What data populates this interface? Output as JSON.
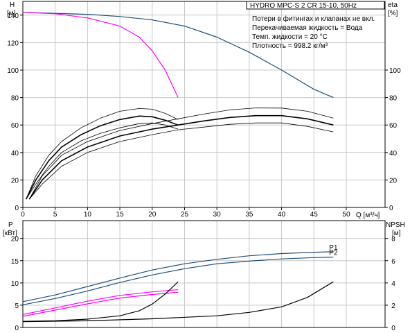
{
  "chart_data": [
    {
      "type": "line",
      "title": "HYDRO MPC-S 2 CR 15-10, 50Hz",
      "notes": [
        "Потери в фитингах и клапанах не вкл.",
        "Перекачиваемая жидкость = Вода",
        "Темп. жидкости = 20 °C",
        "Плотность = 998.2 кг/м³"
      ],
      "xlabel": "Q [м³/ч]",
      "ylabel_left": [
        "H",
        "[м]"
      ],
      "ylabel_right": [
        "eta",
        "[%]"
      ],
      "xlim": [
        0,
        56
      ],
      "ylim_left": [
        0,
        150
      ],
      "ylim_right": [
        0,
        150
      ],
      "x_ticks": [
        0,
        5,
        10,
        15,
        20,
        25,
        30,
        35,
        40,
        45,
        50
      ],
      "y_ticks_left": [
        0,
        20,
        40,
        60,
        80,
        100,
        120,
        140
      ],
      "y_ticks_right": [
        0,
        20,
        40,
        60,
        80,
        100
      ],
      "grid": true,
      "series": [
        {
          "color": "#1f4e79",
          "points": [
            [
              0,
              142
            ],
            [
              5,
              141.3
            ],
            [
              10,
              140.6
            ],
            [
              15,
              139
            ],
            [
              20,
              136.5
            ],
            [
              25,
              132
            ],
            [
              30,
              124
            ],
            [
              35,
              113
            ],
            [
              40,
              100
            ],
            [
              45,
              86
            ],
            [
              48,
              80
            ]
          ]
        },
        {
          "color": "#ff00ff",
          "points": [
            [
              0,
              142
            ],
            [
              5,
              141
            ],
            [
              10,
              138
            ],
            [
              15,
              132
            ],
            [
              18,
              124
            ],
            [
              20,
              114
            ],
            [
              22,
              100
            ],
            [
              24,
              80
            ]
          ]
        },
        {
          "color": "#000000",
          "width": 1.6,
          "points": [
            [
              0.5,
              6
            ],
            [
              2,
              20
            ],
            [
              4,
              34
            ],
            [
              6,
              44
            ],
            [
              9,
              53
            ],
            [
              12,
              59.5
            ],
            [
              15,
              64
            ],
            [
              18,
              66.5
            ],
            [
              20,
              66
            ],
            [
              22,
              63.5
            ],
            [
              24,
              60
            ]
          ]
        },
        {
          "color": "#000000",
          "width": 0.8,
          "points": [
            [
              0.5,
              6
            ],
            [
              2,
              23
            ],
            [
              4,
              38
            ],
            [
              6,
              48
            ],
            [
              9,
              58
            ],
            [
              12,
              65
            ],
            [
              15,
              70
            ],
            [
              18,
              72
            ],
            [
              20,
              71.5
            ],
            [
              22,
              68.5
            ],
            [
              24,
              64
            ]
          ]
        },
        {
          "color": "#000000",
          "width": 0.8,
          "points": [
            [
              0.5,
              6
            ],
            [
              2,
              17
            ],
            [
              4,
              30
            ],
            [
              6,
              40
            ],
            [
              9,
              48.5
            ],
            [
              12,
              54
            ],
            [
              15,
              58
            ],
            [
              18,
              61
            ],
            [
              20,
              61.5
            ],
            [
              22,
              60
            ],
            [
              24,
              57
            ]
          ]
        },
        {
          "color": "#000000",
          "width": 1.6,
          "points": [
            [
              1,
              6
            ],
            [
              3,
              20
            ],
            [
              6,
              34
            ],
            [
              10,
              44
            ],
            [
              15,
              52
            ],
            [
              20,
              57
            ],
            [
              24,
              60
            ],
            [
              28,
              63
            ],
            [
              32,
              65.5
            ],
            [
              36,
              66.8
            ],
            [
              40,
              66.8
            ],
            [
              44,
              64.5
            ],
            [
              48,
              60
            ]
          ]
        },
        {
          "color": "#000000",
          "width": 0.8,
          "points": [
            [
              1,
              6
            ],
            [
              3,
              23
            ],
            [
              6,
              38
            ],
            [
              10,
              48
            ],
            [
              15,
              56
            ],
            [
              20,
              61
            ],
            [
              24,
              64.5
            ],
            [
              28,
              68
            ],
            [
              32,
              71
            ],
            [
              36,
              72.4
            ],
            [
              40,
              72.3
            ],
            [
              44,
              70
            ],
            [
              48,
              65
            ]
          ]
        },
        {
          "color": "#000000",
          "width": 0.8,
          "points": [
            [
              1,
              6
            ],
            [
              3,
              17
            ],
            [
              6,
              30
            ],
            [
              10,
              40
            ],
            [
              15,
              48
            ],
            [
              20,
              53
            ],
            [
              24,
              56.5
            ],
            [
              28,
              58.5
            ],
            [
              32,
              60.5
            ],
            [
              36,
              61.5
            ],
            [
              40,
              61.5
            ],
            [
              44,
              59
            ],
            [
              48,
              55
            ]
          ]
        }
      ]
    },
    {
      "type": "line",
      "xlim": [
        0,
        56
      ],
      "ylabel_left": [
        "P",
        "[кВт]"
      ],
      "ylabel_right": [
        "NPSH",
        "[м]"
      ],
      "ylim_left": [
        0,
        24
      ],
      "ylim_right": [
        0,
        9.6
      ],
      "y_ticks_left": [
        0,
        5,
        10,
        15,
        20
      ],
      "y_ticks_right": [
        0,
        2,
        4,
        6,
        8
      ],
      "grid": true,
      "series": [
        {
          "name": "P1",
          "color": "#1f4e79",
          "points": [
            [
              0,
              5.8
            ],
            [
              5,
              7.3
            ],
            [
              10,
              9.2
            ],
            [
              15,
              11.1
            ],
            [
              20,
              12.9
            ],
            [
              25,
              14.3
            ],
            [
              30,
              15.3
            ],
            [
              35,
              16.1
            ],
            [
              40,
              16.6
            ],
            [
              45,
              16.9
            ],
            [
              48,
              17
            ]
          ]
        },
        {
          "name": "P2",
          "color": "#1f4e79",
          "points": [
            [
              0,
              5.1
            ],
            [
              5,
              6.5
            ],
            [
              10,
              8.2
            ],
            [
              15,
              10.1
            ],
            [
              20,
              11.8
            ],
            [
              25,
              13.2
            ],
            [
              30,
              14.3
            ],
            [
              35,
              14.9
            ],
            [
              40,
              15.4
            ],
            [
              45,
              15.7
            ],
            [
              48,
              15.8
            ]
          ]
        },
        {
          "color": "#ff00ff",
          "points": [
            [
              0,
              2.9
            ],
            [
              5,
              4.4
            ],
            [
              10,
              5.9
            ],
            [
              15,
              7.2
            ],
            [
              20,
              8
            ],
            [
              24,
              8.5
            ]
          ]
        },
        {
          "color": "#ff00ff",
          "points": [
            [
              0,
              2.5
            ],
            [
              5,
              3.9
            ],
            [
              10,
              5.3
            ],
            [
              15,
              6.6
            ],
            [
              20,
              7.4
            ],
            [
              24,
              7.9
            ]
          ]
        },
        {
          "color": "#000000",
          "axis": "right",
          "points": [
            [
              0,
              0.55
            ],
            [
              5,
              0.6
            ],
            [
              10,
              0.75
            ],
            [
              15,
              1.05
            ],
            [
              18,
              1.5
            ],
            [
              20,
              2.1
            ],
            [
              22,
              3
            ],
            [
              24,
              4.1
            ]
          ]
        },
        {
          "color": "#000000",
          "axis": "right",
          "points": [
            [
              0,
              0.52
            ],
            [
              10,
              0.6
            ],
            [
              20,
              0.78
            ],
            [
              30,
              1.05
            ],
            [
              35,
              1.35
            ],
            [
              40,
              1.85
            ],
            [
              44,
              2.7
            ],
            [
              48,
              4.1
            ]
          ]
        }
      ]
    }
  ]
}
